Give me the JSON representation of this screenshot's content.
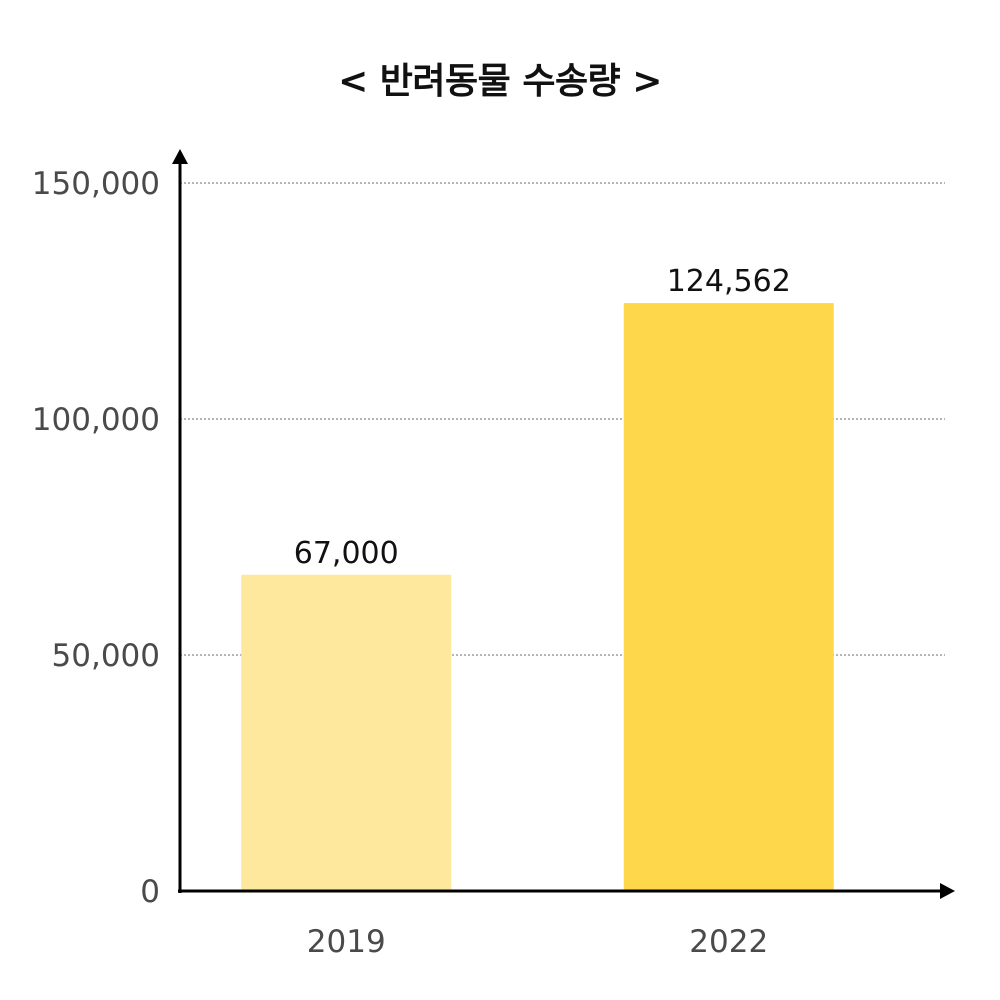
{
  "chart_data": {
    "type": "bar",
    "title": "< 반려동물 수송량 >",
    "xlabel": "",
    "ylabel": "",
    "categories": [
      "2019",
      "2022"
    ],
    "values": [
      67000,
      124562
    ],
    "value_labels": [
      "67,000",
      "124,562"
    ],
    "bar_colors": [
      "#FEE89D",
      "#FED74A"
    ],
    "ylim": [
      0,
      150000
    ],
    "yticks": [
      0,
      50000,
      100000,
      150000
    ],
    "ytick_labels": [
      "0",
      "50,000",
      "100,000",
      "150,000"
    ],
    "grid": true,
    "grid_style": "dotted",
    "legend": "none"
  }
}
